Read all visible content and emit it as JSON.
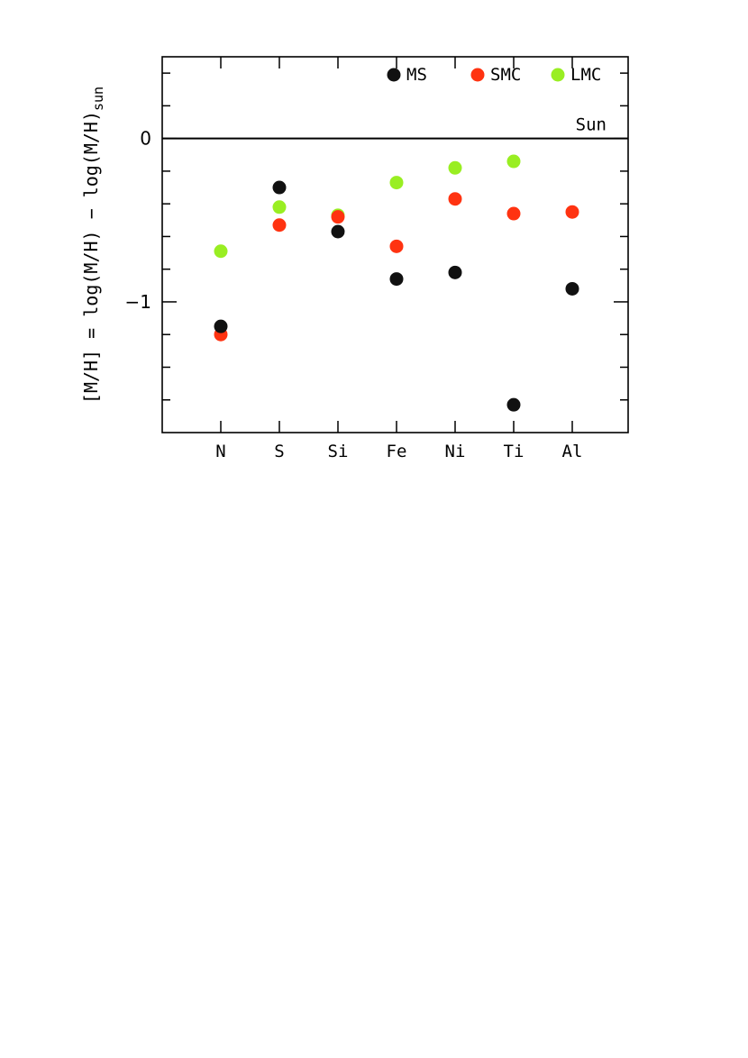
{
  "chart_data": {
    "type": "scatter",
    "categories": [
      "N",
      "S",
      "Si",
      "Fe",
      "Ni",
      "Ti",
      "Al"
    ],
    "ylim": [
      -1.8,
      0.5
    ],
    "yticks": [
      {
        "value": 0,
        "label": "0"
      },
      {
        "value": -1,
        "label": "−1"
      }
    ],
    "ylabel": {
      "main": "[M/H] = log(M/H) − log(M/H)",
      "subscript": "sun"
    },
    "reference_line": {
      "value": 0,
      "label": "Sun"
    },
    "legend_position": "top-right",
    "series": [
      {
        "name": "MS",
        "color": "#111111",
        "values": [
          -1.15,
          -0.3,
          -0.57,
          -0.86,
          -0.82,
          -1.63,
          -0.92
        ]
      },
      {
        "name": "SMC",
        "color": "#ff3311",
        "values": [
          -1.2,
          -0.53,
          -0.48,
          -0.66,
          -0.37,
          -0.46,
          -0.45
        ]
      },
      {
        "name": "LMC",
        "color": "#99ee22",
        "values": [
          -0.69,
          -0.42,
          -0.47,
          -0.27,
          -0.18,
          -0.14,
          null
        ]
      }
    ]
  }
}
